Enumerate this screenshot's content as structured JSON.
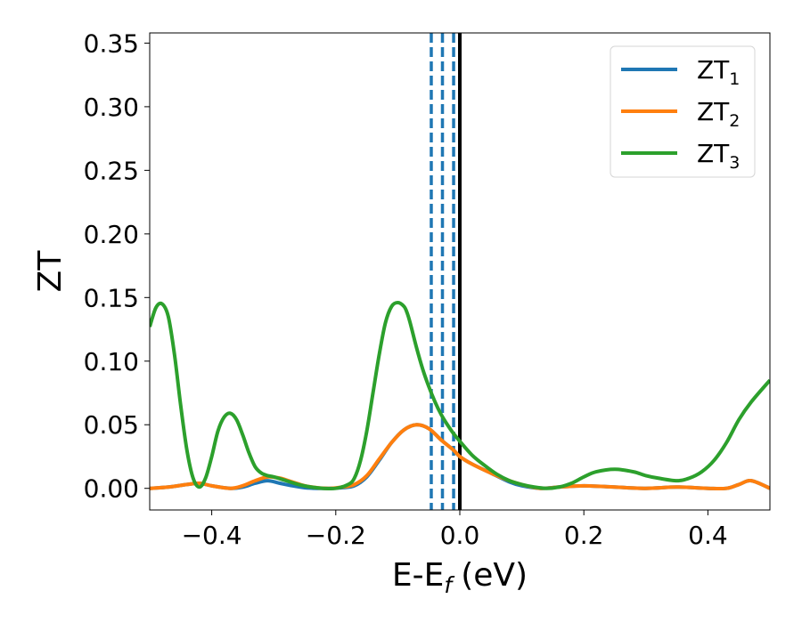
{
  "chart_data": {
    "type": "line",
    "title": "",
    "xlabel": "E-E",
    "xlabel_sub": "f",
    "xlabel_unit": "(eV)",
    "ylabel": "ZT",
    "xlim": [
      -0.5,
      0.5
    ],
    "ylim": [
      -0.017,
      0.358
    ],
    "xticks": [
      -0.4,
      -0.2,
      0.0,
      0.2,
      0.4
    ],
    "xtick_labels": [
      "−0.4",
      "−0.2",
      "0.0",
      "0.2",
      "0.4"
    ],
    "yticks": [
      0.0,
      0.05,
      0.1,
      0.15,
      0.2,
      0.25,
      0.3,
      0.35
    ],
    "ytick_labels": [
      "0.00",
      "0.05",
      "0.10",
      "0.15",
      "0.20",
      "0.25",
      "0.30",
      "0.35"
    ],
    "grid": false,
    "legend_position": "top-right",
    "vertical_lines": [
      {
        "x": 0.0,
        "style": "solid",
        "color": "#000000"
      },
      {
        "x": -0.046,
        "style": "dashed",
        "color": "#1f77b4"
      },
      {
        "x": -0.028,
        "style": "dashed",
        "color": "#1f77b4"
      },
      {
        "x": -0.01,
        "style": "dashed",
        "color": "#1f77b4"
      }
    ],
    "series": [
      {
        "name": "ZT",
        "sub": "1",
        "color": "#1f77b4",
        "x": [
          -0.5,
          -0.47,
          -0.44,
          -0.42,
          -0.4,
          -0.37,
          -0.35,
          -0.33,
          -0.31,
          -0.29,
          -0.27,
          -0.25,
          -0.23,
          -0.21,
          -0.19,
          -0.17,
          -0.15,
          -0.13,
          -0.11,
          -0.09,
          -0.07,
          -0.05,
          -0.03,
          -0.01,
          0.0,
          0.02,
          0.05,
          0.08,
          0.1,
          0.13,
          0.16,
          0.2,
          0.25,
          0.3,
          0.35,
          0.4,
          0.43,
          0.45,
          0.47,
          0.5
        ],
        "y": [
          0.0,
          0.001,
          0.003,
          0.004,
          0.002,
          0.0,
          0.001,
          0.004,
          0.006,
          0.004,
          0.002,
          0.0005,
          0.0,
          0.0,
          0.0005,
          0.002,
          0.009,
          0.022,
          0.036,
          0.046,
          0.05,
          0.047,
          0.038,
          0.03,
          0.025,
          0.019,
          0.012,
          0.005,
          0.002,
          0.0,
          0.001,
          0.002,
          0.001,
          0.0,
          0.001,
          0.0,
          0.0,
          0.003,
          0.006,
          0.0
        ]
      },
      {
        "name": "ZT",
        "sub": "2",
        "color": "#ff7f0e",
        "x": [
          -0.5,
          -0.47,
          -0.44,
          -0.42,
          -0.4,
          -0.37,
          -0.35,
          -0.33,
          -0.31,
          -0.29,
          -0.27,
          -0.25,
          -0.23,
          -0.21,
          -0.19,
          -0.17,
          -0.15,
          -0.13,
          -0.11,
          -0.09,
          -0.07,
          -0.05,
          -0.03,
          -0.01,
          0.0,
          0.02,
          0.05,
          0.08,
          0.1,
          0.13,
          0.16,
          0.2,
          0.25,
          0.3,
          0.35,
          0.4,
          0.43,
          0.45,
          0.47,
          0.5
        ],
        "y": [
          0.0,
          0.001,
          0.003,
          0.004,
          0.002,
          0.0,
          0.002,
          0.006,
          0.009,
          0.008,
          0.005,
          0.002,
          0.0005,
          0.0,
          0.001,
          0.003,
          0.01,
          0.023,
          0.036,
          0.046,
          0.05,
          0.047,
          0.038,
          0.03,
          0.025,
          0.019,
          0.012,
          0.006,
          0.003,
          0.0,
          0.001,
          0.002,
          0.001,
          0.0,
          0.001,
          0.0,
          0.0,
          0.003,
          0.006,
          0.0
        ]
      },
      {
        "name": "ZT",
        "sub": "3",
        "color": "#2ca02c",
        "x": [
          -0.5,
          -0.49,
          -0.48,
          -0.47,
          -0.46,
          -0.45,
          -0.44,
          -0.43,
          -0.42,
          -0.41,
          -0.4,
          -0.39,
          -0.38,
          -0.37,
          -0.36,
          -0.35,
          -0.34,
          -0.33,
          -0.32,
          -0.31,
          -0.3,
          -0.28,
          -0.26,
          -0.24,
          -0.22,
          -0.2,
          -0.18,
          -0.17,
          -0.16,
          -0.15,
          -0.14,
          -0.13,
          -0.12,
          -0.11,
          -0.1,
          -0.09,
          -0.085,
          -0.08,
          -0.07,
          -0.06,
          -0.05,
          -0.04,
          -0.03,
          -0.02,
          -0.01,
          0.0,
          0.02,
          0.04,
          0.06,
          0.08,
          0.1,
          0.12,
          0.14,
          0.16,
          0.18,
          0.2,
          0.22,
          0.25,
          0.28,
          0.3,
          0.32,
          0.35,
          0.37,
          0.39,
          0.41,
          0.43,
          0.45,
          0.47,
          0.5
        ],
        "y": [
          0.127,
          0.142,
          0.145,
          0.135,
          0.105,
          0.065,
          0.03,
          0.008,
          0.001,
          0.008,
          0.025,
          0.045,
          0.056,
          0.059,
          0.054,
          0.042,
          0.028,
          0.017,
          0.012,
          0.01,
          0.009,
          0.006,
          0.003,
          0.001,
          0.0,
          0.0,
          0.003,
          0.008,
          0.022,
          0.045,
          0.075,
          0.105,
          0.13,
          0.143,
          0.146,
          0.143,
          0.138,
          0.13,
          0.111,
          0.094,
          0.08,
          0.068,
          0.058,
          0.05,
          0.043,
          0.037,
          0.026,
          0.018,
          0.011,
          0.006,
          0.003,
          0.001,
          0.0,
          0.001,
          0.004,
          0.009,
          0.013,
          0.015,
          0.013,
          0.01,
          0.008,
          0.006,
          0.008,
          0.013,
          0.022,
          0.036,
          0.054,
          0.068,
          0.085
        ]
      }
    ]
  }
}
